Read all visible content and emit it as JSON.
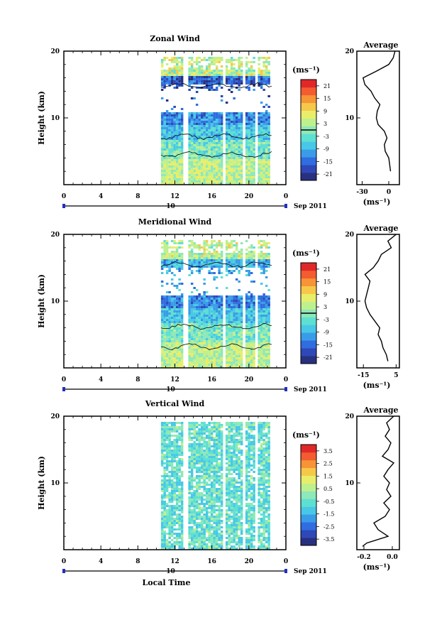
{
  "chart_data": [
    {
      "type": "heatmap",
      "title": "Zonal Wind",
      "ylabel": "Height (km)",
      "yticks": [
        "20",
        "10"
      ],
      "ylim": [
        0,
        20
      ],
      "xticks": [
        "0",
        "4",
        "8",
        "12",
        "16",
        "20",
        "0"
      ],
      "xlim": [
        0,
        24
      ],
      "date_label": "10",
      "month_label": "Sep 2011",
      "data_range": {
        "start_hour": 10.5,
        "end_hour": 22.5
      },
      "colorbar": {
        "unit": "(ms⁻¹)",
        "ticks": [
          "21",
          "15",
          "9",
          "3",
          "-3",
          "-9",
          "-15",
          "-21"
        ],
        "min": -24,
        "max": 24,
        "contour_at": 0
      },
      "average": {
        "title": "Average",
        "xlabel": "(ms⁻¹)",
        "xticks": [
          "-30",
          "0"
        ],
        "xlim": [
          -36,
          12
        ],
        "yticks": [
          "20",
          "10"
        ],
        "profile": [
          {
            "h": 2.0,
            "u": 2
          },
          {
            "h": 3.0,
            "u": 1
          },
          {
            "h": 4.0,
            "u": 0
          },
          {
            "h": 5.0,
            "u": -4
          },
          {
            "h": 6.0,
            "u": -5
          },
          {
            "h": 7.0,
            "u": -2
          },
          {
            "h": 8.0,
            "u": -5
          },
          {
            "h": 9.0,
            "u": -12
          },
          {
            "h": 10.0,
            "u": -14
          },
          {
            "h": 11.0,
            "u": -13
          },
          {
            "h": 12.0,
            "u": -10
          },
          {
            "h": 13.0,
            "u": -16
          },
          {
            "h": 14.0,
            "u": -20
          },
          {
            "h": 15.0,
            "u": -27
          },
          {
            "h": 16.0,
            "u": -29
          },
          {
            "h": 17.0,
            "u": -14
          },
          {
            "h": 18.0,
            "u": 0
          },
          {
            "h": 19.0,
            "u": 5
          },
          {
            "h": 20.0,
            "u": 7
          }
        ]
      }
    },
    {
      "type": "heatmap",
      "title": "Meridional Wind",
      "ylabel": "Height (km)",
      "yticks": [
        "20",
        "10"
      ],
      "ylim": [
        0,
        20
      ],
      "xticks": [
        "0",
        "4",
        "8",
        "12",
        "16",
        "20",
        "0"
      ],
      "xlim": [
        0,
        24
      ],
      "date_label": "10",
      "month_label": "Sep 2011",
      "data_range": {
        "start_hour": 10.5,
        "end_hour": 22.5
      },
      "colorbar": {
        "unit": "(ms⁻¹)",
        "ticks": [
          "21",
          "15",
          "9",
          "3",
          "-3",
          "-9",
          "-15",
          "-21"
        ],
        "min": -24,
        "max": 24,
        "contour_at": 0
      },
      "average": {
        "title": "Average",
        "xlabel": "(ms⁻¹)",
        "xticks": [
          "-15",
          "5"
        ],
        "xlim": [
          -19,
          7
        ],
        "yticks": [
          "20",
          "10"
        ],
        "profile": [
          {
            "h": 1.0,
            "u": 0
          },
          {
            "h": 2.0,
            "u": -1
          },
          {
            "h": 3.0,
            "u": -3
          },
          {
            "h": 4.0,
            "u": -4
          },
          {
            "h": 5.0,
            "u": -6
          },
          {
            "h": 6.0,
            "u": -5
          },
          {
            "h": 7.0,
            "u": -8
          },
          {
            "h": 8.0,
            "u": -11
          },
          {
            "h": 9.0,
            "u": -13
          },
          {
            "h": 10.0,
            "u": -14
          },
          {
            "h": 11.0,
            "u": -13
          },
          {
            "h": 12.0,
            "u": -12
          },
          {
            "h": 13.0,
            "u": -11
          },
          {
            "h": 14.0,
            "u": -14
          },
          {
            "h": 15.0,
            "u": -9
          },
          {
            "h": 16.0,
            "u": -6
          },
          {
            "h": 17.0,
            "u": -4
          },
          {
            "h": 18.0,
            "u": 2
          },
          {
            "h": 19.0,
            "u": 0
          },
          {
            "h": 20.0,
            "u": 5
          }
        ]
      }
    },
    {
      "type": "heatmap",
      "title": "Vertical Wind",
      "ylabel": "Height (km)",
      "yticks": [
        "20",
        "10"
      ],
      "ylim": [
        0,
        20
      ],
      "xticks": [
        "0",
        "4",
        "8",
        "12",
        "16",
        "20",
        "0"
      ],
      "xlim": [
        0,
        24
      ],
      "date_label": "10",
      "month_label": "Sep 2011",
      "xlabel": "Local Time",
      "data_range": {
        "start_hour": 10.5,
        "end_hour": 22.5
      },
      "colorbar": {
        "unit": "(ms⁻¹)",
        "ticks": [
          "3.5",
          "2.5",
          "1.5",
          "0.5",
          "-0.5",
          "-1.5",
          "-2.5",
          "-3.5"
        ],
        "min": -4,
        "max": 4
      },
      "average": {
        "title": "Average",
        "xlabel": "(ms⁻¹)",
        "xticks": [
          "-0.2",
          "0.0"
        ],
        "xlim": [
          -0.25,
          0.05
        ],
        "yticks": [
          "20",
          "10"
        ],
        "profile": [
          {
            "h": 0.5,
            "u": -0.21
          },
          {
            "h": 1.0,
            "u": -0.18
          },
          {
            "h": 2.0,
            "u": -0.03
          },
          {
            "h": 3.0,
            "u": -0.1
          },
          {
            "h": 4.0,
            "u": -0.13
          },
          {
            "h": 5.0,
            "u": -0.05
          },
          {
            "h": 6.0,
            "u": -0.02
          },
          {
            "h": 7.0,
            "u": -0.06
          },
          {
            "h": 8.0,
            "u": -0.01
          },
          {
            "h": 9.0,
            "u": -0.04
          },
          {
            "h": 10.0,
            "u": -0.02
          },
          {
            "h": 11.0,
            "u": -0.06
          },
          {
            "h": 12.0,
            "u": -0.03
          },
          {
            "h": 13.0,
            "u": 0.01
          },
          {
            "h": 14.0,
            "u": -0.07
          },
          {
            "h": 15.0,
            "u": -0.03
          },
          {
            "h": 16.0,
            "u": -0.01
          },
          {
            "h": 17.0,
            "u": -0.05
          },
          {
            "h": 18.0,
            "u": -0.02
          },
          {
            "h": 19.0,
            "u": -0.04
          },
          {
            "h": 20.0,
            "u": 0.01
          }
        ]
      }
    }
  ],
  "colors": {
    "palette": [
      "#283080",
      "#2e48b8",
      "#2f6de0",
      "#3a9ce8",
      "#48c8e6",
      "#5de0d2",
      "#8ee8b8",
      "#bff08e",
      "#e8ee6a",
      "#f6c84a",
      "#f69436",
      "#f25c30",
      "#e02828"
    ]
  }
}
